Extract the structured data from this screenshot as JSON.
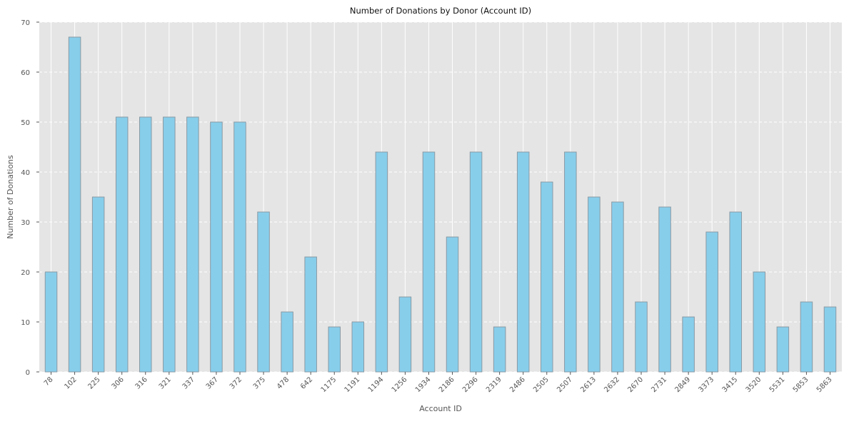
{
  "chart_data": {
    "type": "bar",
    "title": "Number of Donations by Donor (Account ID)",
    "xlabel": "Account ID",
    "ylabel": "Number of Donations",
    "ylim": [
      0,
      70
    ],
    "yticks": [
      0,
      10,
      20,
      30,
      40,
      50,
      60,
      70
    ],
    "grid": true,
    "categories": [
      "78",
      "102",
      "225",
      "306",
      "316",
      "321",
      "337",
      "367",
      "372",
      "375",
      "478",
      "642",
      "1175",
      "1191",
      "1194",
      "1256",
      "1934",
      "2186",
      "2296",
      "2319",
      "2486",
      "2505",
      "2507",
      "2613",
      "2632",
      "2670",
      "2731",
      "2849",
      "3373",
      "3415",
      "3520",
      "5531",
      "5853",
      "5863"
    ],
    "values": [
      20,
      67,
      35,
      51,
      51,
      51,
      51,
      50,
      50,
      32,
      12,
      23,
      9,
      10,
      44,
      15,
      44,
      27,
      44,
      9,
      44,
      38,
      44,
      35,
      34,
      14,
      33,
      11,
      28,
      32,
      20,
      9,
      14,
      13
    ],
    "colors": {
      "bar_fill": "#87ceeb",
      "bar_edge": "#8a9aa4",
      "plot_bg": "#e5e5e5",
      "grid": "#ffffff",
      "text": "#555555",
      "title": "#111111"
    }
  }
}
